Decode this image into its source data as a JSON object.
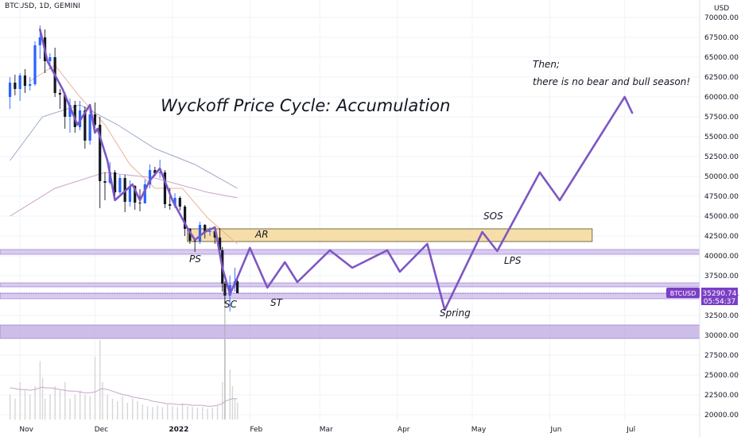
{
  "header": {
    "symbol_line": "BTCUSD, 1D, GEMINI"
  },
  "chart_data": {
    "type": "line",
    "title": "Wyckoff Price Cycle: Accumulation",
    "currency_label": "USD",
    "note_line1": "Then;",
    "note_line2": "there is no bear and bull season!",
    "y_ticks": [
      "70000.00",
      "67500.00",
      "65000.00",
      "62500.00",
      "60000.00",
      "57500.00",
      "55000.00",
      "52500.00",
      "50000.00",
      "47500.00",
      "45000.00",
      "42500.00",
      "40000.00",
      "37500.00",
      "35000.00",
      "32500.00",
      "30000.00",
      "27500.00",
      "25000.00",
      "22500.00",
      "20000.00"
    ],
    "x_ticks": [
      "Nov",
      "Dec",
      "2022",
      "Feb",
      "Mar",
      "Apr",
      "May",
      "Jun",
      "Jul"
    ],
    "price_badge": {
      "symbol": "BTCUSD",
      "price": "35290.74",
      "countdown": "05:54:37",
      "color": "#7b3fc4"
    },
    "annotations": [
      "AR",
      "PS",
      "SC",
      "ST",
      "Spring",
      "SOS",
      "LPS"
    ],
    "zones": [
      {
        "name": "AR range",
        "from": 41800,
        "to": 43400,
        "color": "#f5d89a"
      },
      {
        "name": "support band",
        "from": 40200,
        "to": 40800,
        "color": "#c9b5e8"
      },
      {
        "name": "ST band",
        "from": 36100,
        "to": 36600,
        "color": "#c9b5e8"
      },
      {
        "name": "SC band",
        "from": 34600,
        "to": 35300,
        "color": "#c9b5e8"
      },
      {
        "name": "lower band",
        "from": 29600,
        "to": 31300,
        "color": "#b9a1e0"
      }
    ],
    "wyckoff_path": [
      {
        "date": "2021-11-09",
        "y": 68500
      },
      {
        "date": "2021-11-12",
        "y": 64500
      },
      {
        "date": "2021-11-18",
        "y": 61000
      },
      {
        "date": "2021-11-24",
        "y": 56500
      },
      {
        "date": "2021-11-29",
        "y": 59000
      },
      {
        "date": "2021-12-01",
        "y": 55500
      },
      {
        "date": "2021-12-02",
        "y": 56000
      },
      {
        "date": "2021-12-06",
        "y": 52000
      },
      {
        "date": "2021-12-09",
        "y": 47000
      },
      {
        "date": "2021-12-16",
        "y": 49000
      },
      {
        "date": "2021-12-19",
        "y": 47000
      },
      {
        "date": "2021-12-23",
        "y": 49500
      },
      {
        "date": "2021-12-27",
        "y": 51000
      },
      {
        "date": "2022-01-01",
        "y": 47000
      },
      {
        "date": "2022-01-07",
        "y": 43500
      },
      {
        "date": "2022-01-10",
        "y": 42000
      },
      {
        "date": "2022-01-14",
        "y": 43000
      },
      {
        "date": "2022-01-18",
        "y": 43600
      },
      {
        "date": "2022-01-21",
        "y": 38500
      },
      {
        "date": "2022-01-24",
        "y": 35200
      },
      {
        "date": "2022-01-26",
        "y": 36500
      },
      {
        "date": "2022-02-01",
        "y": 41000
      },
      {
        "date": "2022-02-08",
        "y": 36000
      },
      {
        "date": "2022-02-15",
        "y": 39200
      },
      {
        "date": "2022-02-20",
        "y": 36700
      },
      {
        "date": "2022-03-05",
        "y": 40700
      },
      {
        "date": "2022-03-14",
        "y": 38500
      },
      {
        "date": "2022-03-28",
        "y": 40700
      },
      {
        "date": "2022-04-02",
        "y": 38000
      },
      {
        "date": "2022-04-13",
        "y": 41500
      },
      {
        "date": "2022-04-20",
        "y": 33200
      },
      {
        "date": "2022-05-05",
        "y": 43000
      },
      {
        "date": "2022-05-11",
        "y": 40600
      },
      {
        "date": "2022-05-28",
        "y": 50500
      },
      {
        "date": "2022-06-05",
        "y": 47000
      },
      {
        "date": "2022-07-01",
        "y": 60000
      },
      {
        "date": "2022-07-04",
        "y": 58000
      }
    ],
    "candles": [
      {
        "date": "2021-10-28",
        "o": 60000,
        "h": 62500,
        "l": 58500,
        "c": 61800
      },
      {
        "date": "2021-10-30",
        "o": 61800,
        "h": 62800,
        "l": 60200,
        "c": 61000
      },
      {
        "date": "2021-11-01",
        "o": 61000,
        "h": 63000,
        "l": 59500,
        "c": 62700
      },
      {
        "date": "2021-11-03",
        "o": 62700,
        "h": 63500,
        "l": 60500,
        "c": 61400
      },
      {
        "date": "2021-11-05",
        "o": 61400,
        "h": 62500,
        "l": 60800,
        "c": 61600
      },
      {
        "date": "2021-11-07",
        "o": 61600,
        "h": 67000,
        "l": 61400,
        "c": 66500
      },
      {
        "date": "2021-11-09",
        "o": 66500,
        "h": 69000,
        "l": 64800,
        "c": 67500
      },
      {
        "date": "2021-11-11",
        "o": 67500,
        "h": 68500,
        "l": 63000,
        "c": 64500
      },
      {
        "date": "2021-11-13",
        "o": 64500,
        "h": 65500,
        "l": 63500,
        "c": 65000
      },
      {
        "date": "2021-11-15",
        "o": 65000,
        "h": 66200,
        "l": 60000,
        "c": 60500
      },
      {
        "date": "2021-11-17",
        "o": 60500,
        "h": 61000,
        "l": 58500,
        "c": 60300
      },
      {
        "date": "2021-11-19",
        "o": 60300,
        "h": 60600,
        "l": 56000,
        "c": 57500
      },
      {
        "date": "2021-11-21",
        "o": 57500,
        "h": 59800,
        "l": 55500,
        "c": 59000
      },
      {
        "date": "2021-11-23",
        "o": 59000,
        "h": 59500,
        "l": 55500,
        "c": 56200
      },
      {
        "date": "2021-11-25",
        "o": 56200,
        "h": 59500,
        "l": 55800,
        "c": 58300
      },
      {
        "date": "2021-11-27",
        "o": 58300,
        "h": 58800,
        "l": 53500,
        "c": 54500
      },
      {
        "date": "2021-11-29",
        "o": 54500,
        "h": 59000,
        "l": 54000,
        "c": 57800
      },
      {
        "date": "2021-12-01",
        "o": 57800,
        "h": 59300,
        "l": 55600,
        "c": 56500
      },
      {
        "date": "2021-12-03",
        "o": 56500,
        "h": 57500,
        "l": 46000,
        "c": 49400
      },
      {
        "date": "2021-12-05",
        "o": 49400,
        "h": 50500,
        "l": 47000,
        "c": 49200
      },
      {
        "date": "2021-12-07",
        "o": 49200,
        "h": 51800,
        "l": 49000,
        "c": 50500
      },
      {
        "date": "2021-12-09",
        "o": 50500,
        "h": 50800,
        "l": 47500,
        "c": 48000
      },
      {
        "date": "2021-12-11",
        "o": 48000,
        "h": 50200,
        "l": 47800,
        "c": 49800
      },
      {
        "date": "2021-12-13",
        "o": 49800,
        "h": 50200,
        "l": 45500,
        "c": 46800
      },
      {
        "date": "2021-12-15",
        "o": 46800,
        "h": 49500,
        "l": 46200,
        "c": 48800
      },
      {
        "date": "2021-12-17",
        "o": 48800,
        "h": 48900,
        "l": 45800,
        "c": 46700
      },
      {
        "date": "2021-12-19",
        "o": 46700,
        "h": 48400,
        "l": 45600,
        "c": 46600
      },
      {
        "date": "2021-12-21",
        "o": 46600,
        "h": 49600,
        "l": 46600,
        "c": 49000
      },
      {
        "date": "2021-12-23",
        "o": 49000,
        "h": 51500,
        "l": 48500,
        "c": 50800
      },
      {
        "date": "2021-12-25",
        "o": 50800,
        "h": 51200,
        "l": 50000,
        "c": 50400
      },
      {
        "date": "2021-12-27",
        "o": 50400,
        "h": 52100,
        "l": 49800,
        "c": 50500
      },
      {
        "date": "2021-12-29",
        "o": 50500,
        "h": 50800,
        "l": 46000,
        "c": 46500
      },
      {
        "date": "2021-12-31",
        "o": 46500,
        "h": 48500,
        "l": 45800,
        "c": 46300
      },
      {
        "date": "2022-01-02",
        "o": 46300,
        "h": 47900,
        "l": 46000,
        "c": 47300
      },
      {
        "date": "2022-01-04",
        "o": 47300,
        "h": 47500,
        "l": 45700,
        "c": 46200
      },
      {
        "date": "2022-01-06",
        "o": 46200,
        "h": 46400,
        "l": 42500,
        "c": 43400
      },
      {
        "date": "2022-01-08",
        "o": 43400,
        "h": 43500,
        "l": 41500,
        "c": 41900
      },
      {
        "date": "2022-01-10",
        "o": 41900,
        "h": 42200,
        "l": 40500,
        "c": 41800
      },
      {
        "date": "2022-01-12",
        "o": 41800,
        "h": 44300,
        "l": 41500,
        "c": 43900
      },
      {
        "date": "2022-01-14",
        "o": 43900,
        "h": 44000,
        "l": 42200,
        "c": 43000
      },
      {
        "date": "2022-01-16",
        "o": 43000,
        "h": 43600,
        "l": 42500,
        "c": 43100
      },
      {
        "date": "2022-01-18",
        "o": 43100,
        "h": 43200,
        "l": 41500,
        "c": 42300
      },
      {
        "date": "2022-01-20",
        "o": 42300,
        "h": 43500,
        "l": 40800,
        "c": 40700
      },
      {
        "date": "2022-01-21",
        "o": 40700,
        "h": 41100,
        "l": 35500,
        "c": 36500
      },
      {
        "date": "2022-01-22",
        "o": 36500,
        "h": 36800,
        "l": 34000,
        "c": 35000
      },
      {
        "date": "2022-01-24",
        "o": 35000,
        "h": 37500,
        "l": 33000,
        "c": 36300
      },
      {
        "date": "2022-01-26",
        "o": 36300,
        "h": 38500,
        "l": 35500,
        "c": 36800
      },
      {
        "date": "2022-01-27",
        "o": 36800,
        "h": 37200,
        "l": 35300,
        "c": 35290
      }
    ],
    "moving_averages": [
      {
        "name": "ma_fast",
        "color": "#e8b494",
        "points": [
          {
            "date": "2021-11-05",
            "y": 62000
          },
          {
            "date": "2021-11-15",
            "y": 64000
          },
          {
            "date": "2021-11-25",
            "y": 60000
          },
          {
            "date": "2021-12-05",
            "y": 56500
          },
          {
            "date": "2021-12-15",
            "y": 51500
          },
          {
            "date": "2021-12-25",
            "y": 48500
          },
          {
            "date": "2022-01-05",
            "y": 48500
          },
          {
            "date": "2022-01-15",
            "y": 44800
          },
          {
            "date": "2022-01-27",
            "y": 41500
          }
        ]
      },
      {
        "name": "ma_mid",
        "color": "#9fa8c8",
        "points": [
          {
            "date": "2021-10-28",
            "y": 52000
          },
          {
            "date": "2021-11-10",
            "y": 57500
          },
          {
            "date": "2021-11-25",
            "y": 59000
          },
          {
            "date": "2021-12-10",
            "y": 56500
          },
          {
            "date": "2021-12-25",
            "y": 53500
          },
          {
            "date": "2022-01-10",
            "y": 51500
          },
          {
            "date": "2022-01-27",
            "y": 48500
          }
        ]
      },
      {
        "name": "ma_slow",
        "color": "#c9a3c8",
        "points": [
          {
            "date": "2021-10-28",
            "y": 45000
          },
          {
            "date": "2021-11-15",
            "y": 48500
          },
          {
            "date": "2021-12-05",
            "y": 50500
          },
          {
            "date": "2021-12-25",
            "y": 49800
          },
          {
            "date": "2022-01-15",
            "y": 48000
          },
          {
            "date": "2022-01-27",
            "y": 47300
          }
        ]
      }
    ],
    "volume": {
      "dates": [
        "2021-10-28",
        "2021-10-30",
        "2021-11-01",
        "2021-11-03",
        "2021-11-05",
        "2021-11-07",
        "2021-11-09",
        "2021-11-10",
        "2021-11-11",
        "2021-11-13",
        "2021-11-15",
        "2021-11-17",
        "2021-11-19",
        "2021-11-21",
        "2021-11-23",
        "2021-11-25",
        "2021-11-27",
        "2021-11-29",
        "2021-12-01",
        "2021-12-03",
        "2021-12-04",
        "2021-12-06",
        "2021-12-08",
        "2021-12-10",
        "2021-12-12",
        "2021-12-14",
        "2021-12-16",
        "2021-12-18",
        "2021-12-20",
        "2021-12-22",
        "2021-12-24",
        "2021-12-26",
        "2021-12-28",
        "2021-12-30",
        "2022-01-01",
        "2022-01-03",
        "2022-01-05",
        "2022-01-07",
        "2022-01-09",
        "2022-01-11",
        "2022-01-13",
        "2022-01-15",
        "2022-01-17",
        "2022-01-19",
        "2022-01-21",
        "2022-01-22",
        "2022-01-24",
        "2022-01-25",
        "2022-01-26",
        "2022-01-27"
      ],
      "values": [
        30,
        25,
        45,
        35,
        30,
        40,
        70,
        50,
        25,
        30,
        40,
        35,
        45,
        25,
        30,
        35,
        30,
        28,
        75,
        95,
        45,
        30,
        25,
        22,
        28,
        20,
        25,
        22,
        18,
        16,
        15,
        17,
        15,
        18,
        16,
        15,
        20,
        16,
        15,
        14,
        15,
        13,
        14,
        16,
        45,
        100,
        60,
        40,
        25,
        20
      ],
      "ma": [
        38,
        37,
        36,
        36,
        35,
        36,
        38,
        39,
        38,
        38,
        37,
        36,
        35,
        34,
        34,
        33,
        32,
        32,
        33,
        36,
        37,
        36,
        34,
        32,
        30,
        29,
        27,
        26,
        25,
        24,
        22,
        21,
        20,
        19,
        19,
        18,
        18,
        18,
        17,
        17,
        17,
        16,
        16,
        17,
        19,
        22,
        24,
        25,
        25,
        25
      ]
    },
    "x_min": "2021-10-24",
    "x_max": "2022-07-31",
    "y_min": 20000,
    "y_max": 70000
  }
}
